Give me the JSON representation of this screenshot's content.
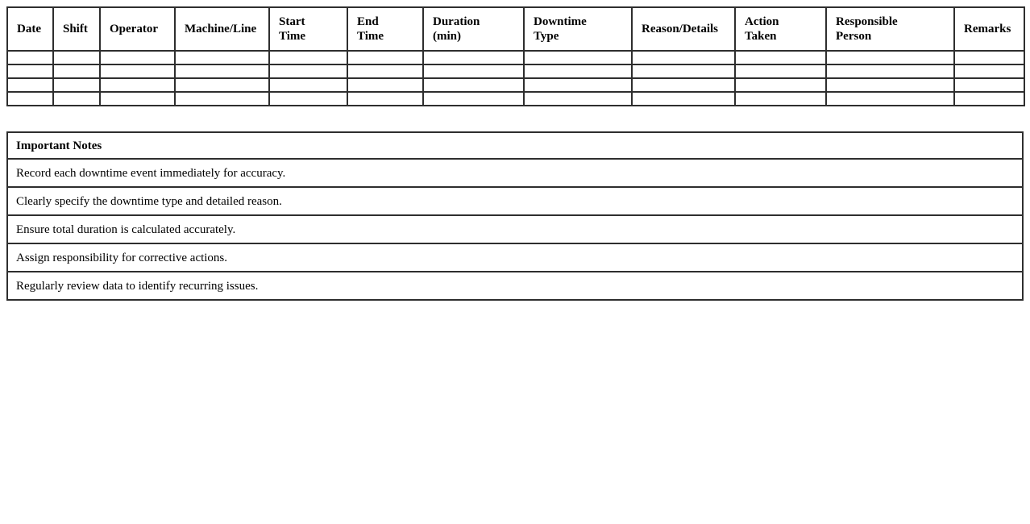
{
  "page": {
    "background_color": "#ffffff",
    "border_color": "#2e2e2e",
    "text_color": "#000000"
  },
  "downtime_table": {
    "columns": [
      "Date",
      "Shift",
      "Operator",
      "Machine/Line",
      "Start\nTime",
      "End\nTime",
      "Duration\n(min)",
      "Downtime\nType",
      "Reason/Details",
      "Action\nTaken",
      "Responsible\nPerson",
      "Remarks"
    ],
    "empty_row_count": 4
  },
  "notes": {
    "title": "Important Notes",
    "items": [
      "Record each downtime event immediately for accuracy.",
      "Clearly specify the downtime type and detailed reason.",
      "Ensure total duration is calculated accurately.",
      "Assign responsibility for corrective actions.",
      "Regularly review data to identify recurring issues."
    ]
  }
}
